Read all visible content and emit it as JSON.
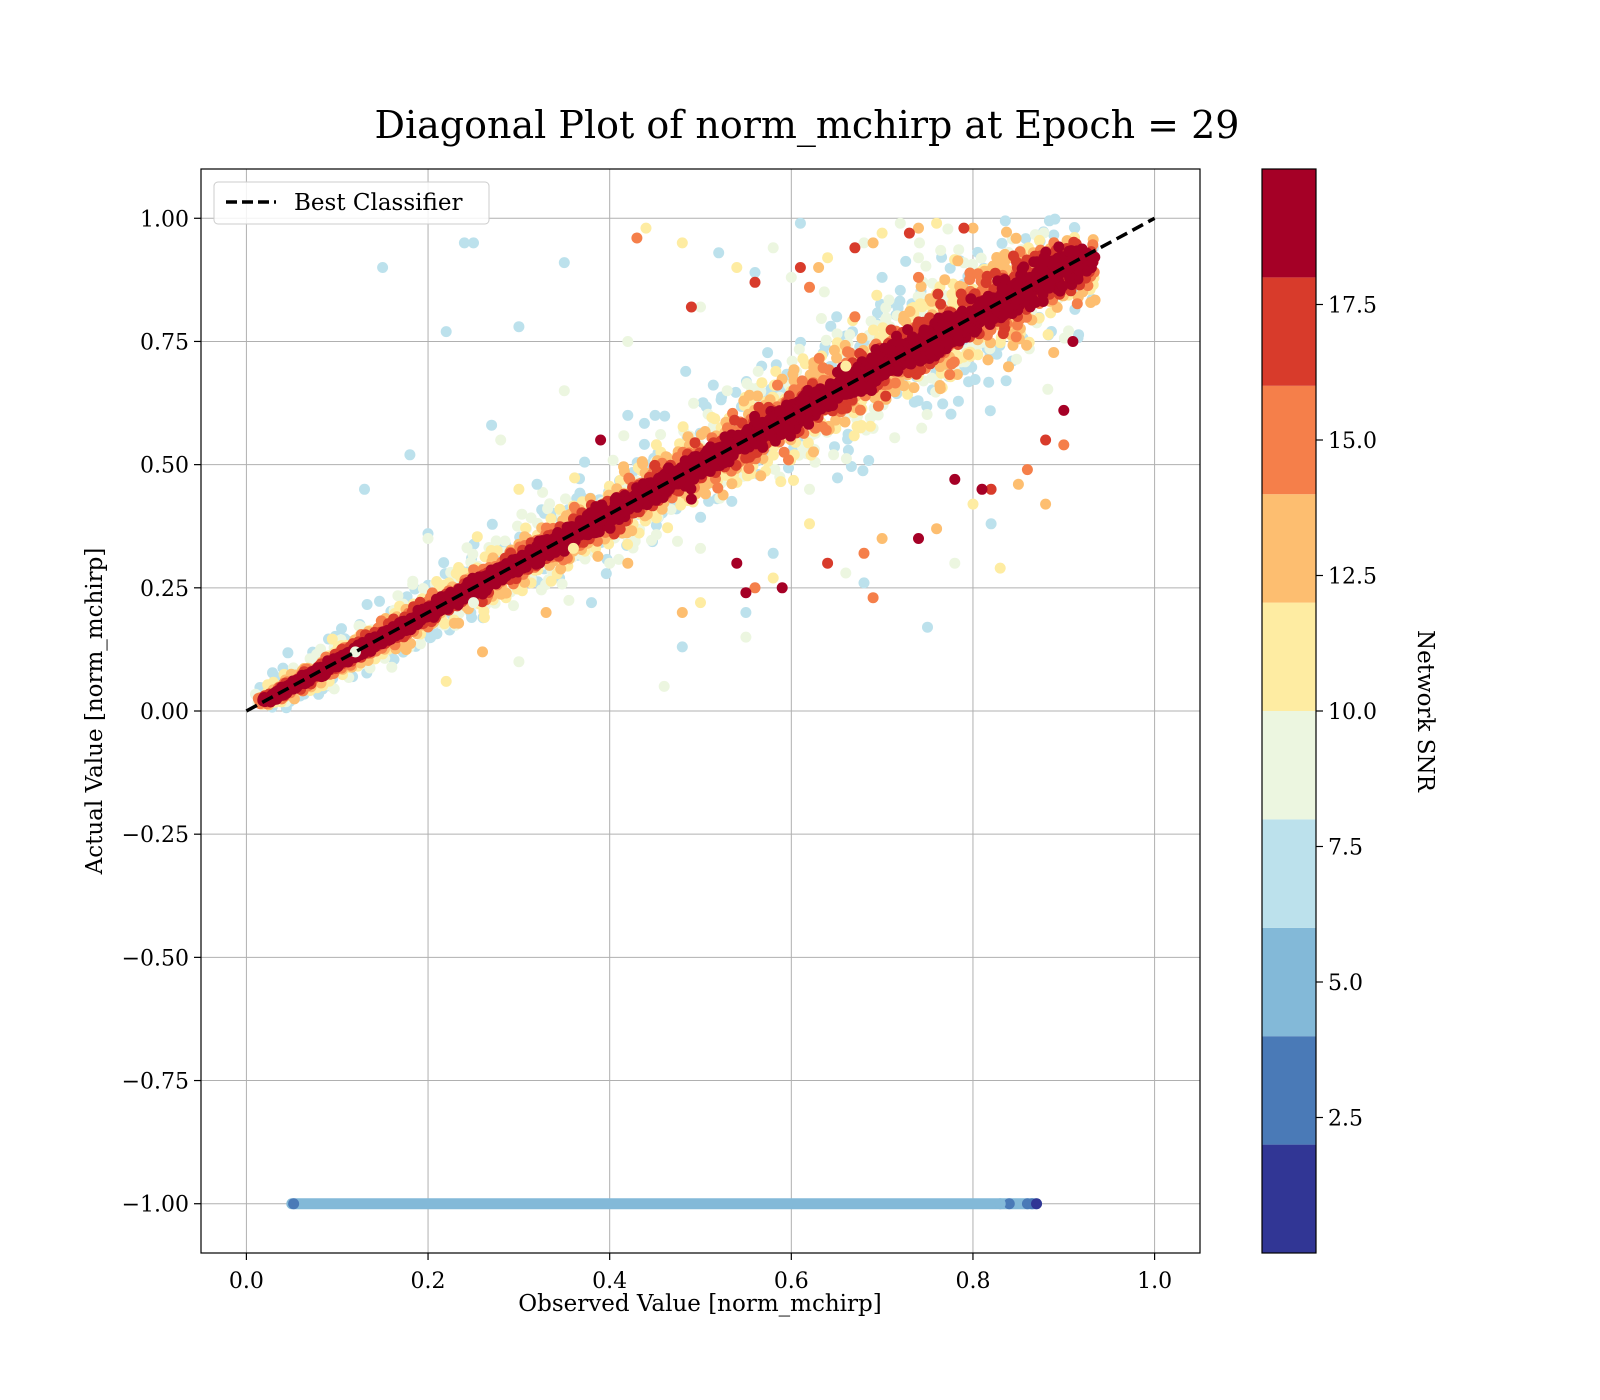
{
  "chart_data": {
    "type": "scatter",
    "title": "Diagonal Plot of norm_mchirp at Epoch = 29",
    "xlabel": "Observed Value [norm_mchirp]",
    "ylabel": "Actual Value [norm_mchirp]",
    "xlim": [
      -0.05,
      1.05
    ],
    "ylim": [
      -1.1,
      1.1
    ],
    "x_ticks": [
      0.0,
      0.2,
      0.4,
      0.6,
      0.8,
      1.0
    ],
    "x_tick_labels": [
      "0.0",
      "0.2",
      "0.4",
      "0.6",
      "0.8",
      "1.0"
    ],
    "y_ticks": [
      1.0,
      0.75,
      0.5,
      0.25,
      0.0,
      -0.25,
      -0.5,
      -0.75,
      -1.0
    ],
    "y_tick_labels": [
      "1.00",
      "0.75",
      "0.50",
      "0.25",
      "0.00",
      "−0.25",
      "−0.50",
      "−0.75",
      "−1.00"
    ],
    "grid": true,
    "legend": {
      "position": "top-left",
      "entries": [
        "Best Classifier"
      ]
    },
    "reference_line": {
      "name": "Best Classifier",
      "style": "dashed",
      "color": "#000000",
      "x": [
        0.0,
        1.0
      ],
      "y": [
        0.0,
        1.0
      ]
    },
    "colorbar": {
      "label": "Network SNR",
      "range": [
        0,
        20
      ],
      "bands": [
        {
          "from": 0.0,
          "to": 2.0,
          "color": "#313695"
        },
        {
          "from": 2.0,
          "to": 4.0,
          "color": "#4a7ab7"
        },
        {
          "from": 4.0,
          "to": 6.0,
          "color": "#83b9d8"
        },
        {
          "from": 6.0,
          "to": 8.0,
          "color": "#bce1ec"
        },
        {
          "from": 8.0,
          "to": 10.0,
          "color": "#ecf6e0"
        },
        {
          "from": 10.0,
          "to": 12.0,
          "color": "#feeca2"
        },
        {
          "from": 12.0,
          "to": 14.0,
          "color": "#fdbe70"
        },
        {
          "from": 14.0,
          "to": 16.0,
          "color": "#f57f4a"
        },
        {
          "from": 16.0,
          "to": 18.0,
          "color": "#d83b2b"
        },
        {
          "from": 18.0,
          "to": 20.0,
          "color": "#a50026"
        }
      ],
      "ticks": [
        2.5,
        5.0,
        7.5,
        10.0,
        12.5,
        15.0,
        17.5
      ],
      "tick_labels": [
        "2.5",
        "5.0",
        "7.5",
        "10.0",
        "12.5",
        "15.0",
        "17.5"
      ]
    },
    "series": [
      {
        "snr_band": "2-8",
        "color": "#bce1ec",
        "x": [
          0.15,
          0.24,
          0.25,
          0.35,
          0.52,
          0.56,
          0.61,
          0.3,
          0.22,
          0.13,
          0.18,
          0.27,
          0.45,
          0.65,
          0.75,
          0.48,
          0.38,
          0.42,
          0.55,
          0.7,
          0.2,
          0.32,
          0.58,
          0.68,
          0.82
        ],
        "y": [
          0.9,
          0.95,
          0.95,
          0.91,
          0.93,
          0.89,
          0.99,
          0.78,
          0.77,
          0.45,
          0.52,
          0.58,
          0.6,
          0.8,
          0.17,
          0.13,
          0.22,
          0.6,
          0.2,
          0.88,
          0.36,
          0.46,
          0.32,
          0.26,
          0.38
        ]
      },
      {
        "snr_band": "8-10",
        "color": "#ecf6e0",
        "x": [
          0.28,
          0.35,
          0.42,
          0.5,
          0.6,
          0.68,
          0.72,
          0.2,
          0.12,
          0.3,
          0.46,
          0.55,
          0.78,
          0.62,
          0.4,
          0.25,
          0.5,
          0.66,
          0.74,
          0.58
        ],
        "y": [
          0.55,
          0.65,
          0.75,
          0.82,
          0.88,
          0.95,
          0.99,
          0.35,
          0.12,
          0.1,
          0.05,
          0.15,
          0.3,
          0.45,
          0.3,
          0.22,
          0.33,
          0.28,
          0.92,
          0.94
        ]
      },
      {
        "snr_band": "10-12",
        "color": "#feeca2",
        "x": [
          0.44,
          0.48,
          0.54,
          0.64,
          0.7,
          0.76,
          0.8,
          0.83,
          0.58,
          0.5,
          0.36,
          0.3,
          0.22,
          0.66,
          0.62
        ],
        "y": [
          0.98,
          0.95,
          0.9,
          0.92,
          0.97,
          0.99,
          0.42,
          0.29,
          0.27,
          0.22,
          0.33,
          0.45,
          0.06,
          0.7,
          0.38
        ]
      },
      {
        "snr_band": "12-14",
        "color": "#fdbe70",
        "x": [
          0.63,
          0.69,
          0.74,
          0.8,
          0.88,
          0.85,
          0.48,
          0.42,
          0.7,
          0.76,
          0.26,
          0.33
        ],
        "y": [
          0.9,
          0.95,
          0.98,
          0.98,
          0.42,
          0.46,
          0.2,
          0.3,
          0.35,
          0.37,
          0.12,
          0.2
        ]
      },
      {
        "snr_band": "14-16",
        "color": "#f57f4a",
        "x": [
          0.43,
          0.62,
          0.67,
          0.74,
          0.86,
          0.9,
          0.69,
          0.68,
          0.56
        ],
        "y": [
          0.96,
          0.86,
          0.8,
          0.88,
          0.49,
          0.54,
          0.23,
          0.32,
          0.25
        ]
      },
      {
        "snr_band": "16-18",
        "color": "#d83b2b",
        "x": [
          0.49,
          0.56,
          0.61,
          0.67,
          0.73,
          0.79,
          0.88,
          0.64,
          0.82
        ],
        "y": [
          0.82,
          0.87,
          0.9,
          0.94,
          0.97,
          0.98,
          0.55,
          0.3,
          0.45
        ]
      },
      {
        "snr_band": "18-20",
        "color": "#a50026",
        "x": [
          0.02,
          0.05,
          0.08,
          0.11,
          0.14,
          0.17,
          0.2,
          0.23,
          0.26,
          0.29,
          0.32,
          0.35,
          0.38,
          0.41,
          0.44,
          0.47,
          0.5,
          0.53,
          0.56,
          0.59,
          0.62,
          0.65,
          0.68,
          0.71,
          0.74,
          0.77,
          0.8,
          0.83,
          0.86,
          0.89,
          0.91,
          0.92,
          0.39,
          0.54,
          0.59,
          0.74,
          0.78,
          0.81,
          0.9,
          0.91,
          0.49,
          0.55
        ],
        "y": [
          0.02,
          0.05,
          0.08,
          0.11,
          0.14,
          0.17,
          0.2,
          0.23,
          0.26,
          0.29,
          0.32,
          0.35,
          0.38,
          0.41,
          0.44,
          0.47,
          0.5,
          0.53,
          0.56,
          0.59,
          0.62,
          0.65,
          0.68,
          0.71,
          0.74,
          0.77,
          0.8,
          0.83,
          0.86,
          0.89,
          0.91,
          0.92,
          0.55,
          0.3,
          0.25,
          0.35,
          0.47,
          0.45,
          0.61,
          0.75,
          0.43,
          0.24
        ]
      },
      {
        "snr_band": "band at y = -1",
        "color": "#83b9d8",
        "x_range": [
          0.05,
          0.87
        ],
        "y": -1.0
      }
    ]
  }
}
